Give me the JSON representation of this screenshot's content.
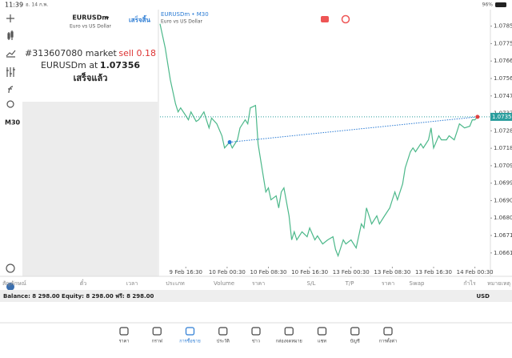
{
  "status_bar": {
    "time": "11:39",
    "date": "อ. 14 ก.พ.",
    "battery": "96%"
  },
  "toolbar": {
    "timeframe": "M30"
  },
  "order_panel": {
    "symbol": "EURUSDm",
    "description": "Euro vs US Dollar",
    "done_button": "เสร็จสิ้น",
    "order_line": "#313607080 market",
    "side_volume": "sell 0.18",
    "fill_line": "EURUSDm at",
    "fill_price": "1.07356",
    "status": "เสร็จแล้ว"
  },
  "chart_data": {
    "type": "line",
    "title": "EURUSDm • M30",
    "subtitle": "Euro vs US Dollar",
    "color": "#4cb88a",
    "x": [
      0,
      2,
      4,
      6,
      7,
      8,
      10,
      11,
      12,
      14,
      15,
      17,
      19,
      20,
      22,
      24,
      25,
      27,
      28,
      30,
      31,
      33,
      34,
      35,
      37,
      38,
      39,
      41,
      42,
      43,
      45,
      46,
      47,
      48,
      50,
      51,
      52,
      53,
      55,
      57,
      58,
      60,
      61,
      63,
      65,
      67,
      68,
      69,
      71,
      72,
      74,
      76,
      78,
      79,
      80,
      82,
      84,
      85,
      87,
      89,
      90,
      91,
      92,
      94,
      95,
      97,
      98,
      99,
      101,
      102,
      104,
      105,
      106,
      108,
      109,
      111,
      112,
      114,
      115,
      116,
      118,
      120,
      121,
      122,
      123
    ],
    "values": [
      1.07863,
      1.07732,
      1.07558,
      1.07427,
      1.07383,
      1.07405,
      1.07362,
      1.0734,
      1.07383,
      1.07331,
      1.0734,
      1.07383,
      1.07296,
      1.07349,
      1.07318,
      1.07253,
      1.07187,
      1.07218,
      1.07187,
      1.07231,
      1.07296,
      1.0734,
      1.07318,
      1.07405,
      1.07418,
      1.07209,
      1.07122,
      1.06947,
      1.06969,
      1.06904,
      1.06926,
      1.0686,
      1.06947,
      1.06969,
      1.06817,
      1.06686,
      1.0673,
      1.06686,
      1.0673,
      1.06703,
      1.06751,
      1.06686,
      1.06708,
      1.06664,
      1.06686,
      1.06703,
      1.06634,
      1.06599,
      1.06686,
      1.06664,
      1.06686,
      1.06642,
      1.06773,
      1.06751,
      1.0686,
      1.06773,
      1.06817,
      1.06773,
      1.06817,
      1.0686,
      1.06904,
      1.06947,
      1.06904,
      1.06991,
      1.07078,
      1.07166,
      1.07187,
      1.07166,
      1.07209,
      1.07187,
      1.07231,
      1.07296,
      1.07187,
      1.07253,
      1.07231,
      1.07231,
      1.07253,
      1.07231,
      1.07274,
      1.07318,
      1.07296,
      1.07305,
      1.0734,
      1.0734,
      1.07356
    ],
    "xlim": [
      0,
      128
    ],
    "ylim": [
      1.0654,
      1.0794
    ],
    "xticks": [
      {
        "value": 10,
        "label": "9 Feb 16:30"
      },
      {
        "value": 26,
        "label": "10 Feb 00:30"
      },
      {
        "value": 42,
        "label": "10 Feb 08:30"
      },
      {
        "value": 58,
        "label": "10 Feb 16:30"
      },
      {
        "value": 74,
        "label": "13 Feb 00:30"
      },
      {
        "value": 90,
        "label": "13 Feb 08:30"
      },
      {
        "value": 106,
        "label": "13 Feb 16:30"
      },
      {
        "value": 122,
        "label": "14 Feb 00:30"
      }
    ],
    "yticks": [
      {
        "value": 1.0785,
        "label": "1.07850"
      },
      1.07755,
      {
        "value": 1.0766,
        "label": "1.07660"
      },
      1.07565,
      {
        "value": 1.0747,
        "label": "1.07470"
      },
      1.07375,
      {
        "value": 1.0728,
        "label": "1.07280"
      },
      1.07185,
      {
        "value": 1.0709,
        "label": "1.07090"
      },
      1.06995,
      {
        "value": 1.069,
        "label": "1.06900"
      },
      1.06805,
      {
        "value": 1.0671,
        "label": "1.06710"
      },
      1.06615
    ],
    "current_price": 1.07356,
    "price_line_color": "#2a9d9d",
    "trade": {
      "entry_x": 27,
      "entry_price": 1.07218,
      "entry_color": "#2a7bd4",
      "exit_x": 123,
      "exit_price": 1.07356,
      "exit_color": "#e04040"
    }
  },
  "positions_table": {
    "columns": [
      "สัญลักษณ์",
      "ตั๋ว",
      "เวลา",
      "ประเภท",
      "Volume",
      "ราคา",
      "S/L",
      "T/P",
      "ราคา",
      "Swap",
      "กำไร",
      "หมายเหตุ"
    ]
  },
  "account": {
    "summary": "Balance: 8 298.00 Equity: 8 298.00 ฟรี: 8 298.00",
    "currency": "USD"
  },
  "tab_bar": {
    "tabs": [
      "ราคา",
      "กราฟ",
      "การซื้อขาย",
      "ประวัติ",
      "ข่าว",
      "กล่องจดหมาย",
      "แชท",
      "บัญชี",
      "การตั้งค่า"
    ],
    "active": 2
  }
}
